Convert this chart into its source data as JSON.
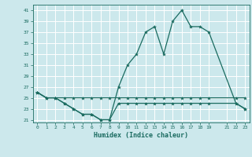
{
  "xlabel": "Humidex (Indice chaleur)",
  "bg_color": "#cce8ec",
  "grid_color": "#ffffff",
  "line_color": "#1a6b60",
  "xlim": [
    -0.5,
    23.5
  ],
  "ylim": [
    20.5,
    42
  ],
  "yticks": [
    21,
    23,
    25,
    27,
    29,
    31,
    33,
    35,
    37,
    39,
    41
  ],
  "xticks": [
    0,
    1,
    2,
    3,
    4,
    5,
    6,
    7,
    8,
    9,
    10,
    11,
    12,
    13,
    14,
    15,
    16,
    17,
    18,
    19,
    21,
    22,
    23
  ],
  "line1_x": [
    0,
    1,
    2,
    3,
    4,
    5,
    6,
    7,
    8,
    9,
    10,
    11,
    12,
    13,
    14,
    15,
    16,
    17,
    18,
    19,
    22,
    23
  ],
  "line1_y": [
    26,
    25,
    25,
    24,
    23,
    22,
    22,
    21,
    21,
    27,
    31,
    33,
    37,
    38,
    33,
    39,
    41,
    38,
    38,
    37,
    24,
    23
  ],
  "line2_x": [
    0,
    1,
    2,
    3,
    4,
    5,
    6,
    7,
    8,
    9,
    10,
    11,
    12,
    13,
    14,
    15,
    16,
    17,
    18,
    19,
    22,
    23
  ],
  "line2_y": [
    26,
    25,
    25,
    25,
    25,
    25,
    25,
    25,
    25,
    25,
    25,
    25,
    25,
    25,
    25,
    25,
    25,
    25,
    25,
    25,
    25,
    25
  ],
  "line3_x": [
    0,
    1,
    2,
    3,
    4,
    5,
    6,
    7,
    8,
    9,
    10,
    11,
    12,
    13,
    14,
    15,
    16,
    17,
    18,
    19,
    22,
    23
  ],
  "line3_y": [
    26,
    25,
    25,
    24,
    23,
    22,
    22,
    21,
    21,
    24,
    24,
    24,
    24,
    24,
    24,
    24,
    24,
    24,
    24,
    24,
    24,
    23
  ]
}
